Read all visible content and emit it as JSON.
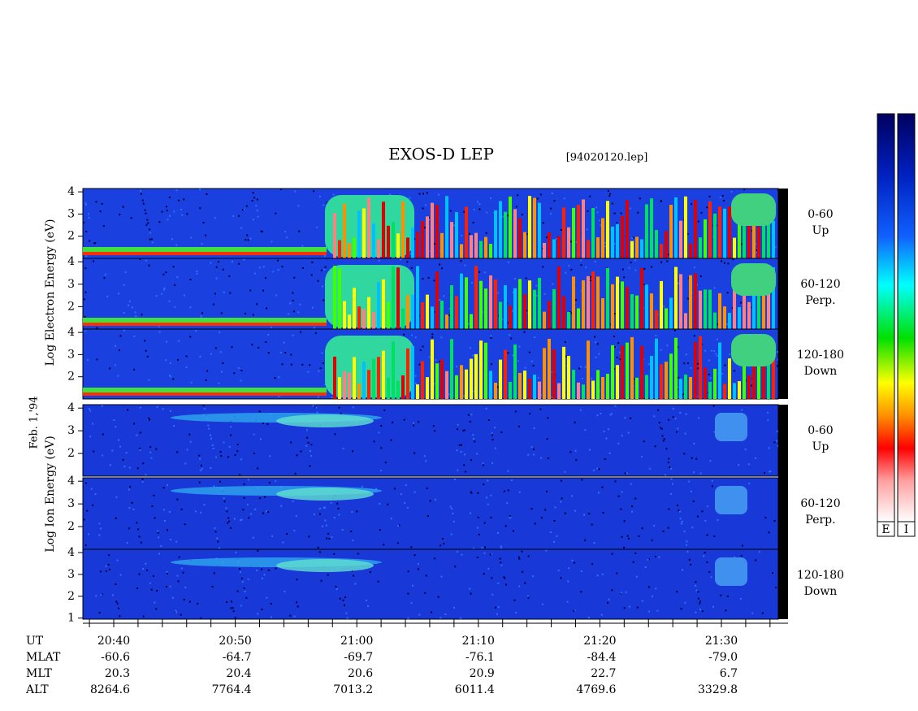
{
  "header": {
    "title": "EXOS-D LEP",
    "file": "[94020120.lep]",
    "date": "Feb. 1,'94"
  },
  "chart_data": [
    {
      "type": "heatmap",
      "ylabel": "Log Electron Energy (eV)",
      "panels": [
        {
          "label": "0-60",
          "sublabel": "Up",
          "ylim": [
            1,
            4.15
          ],
          "yticks": [
            2,
            3,
            4
          ]
        },
        {
          "label": "60-120",
          "sublabel": "Perp.",
          "ylim": [
            1,
            4.15
          ],
          "yticks": [
            2,
            3,
            4
          ]
        },
        {
          "label": "120-180",
          "sublabel": "Down",
          "ylim": [
            1,
            4.15
          ],
          "yticks": [
            2,
            3,
            4
          ]
        }
      ]
    },
    {
      "type": "heatmap",
      "ylabel": "Log Ion Energy (eV)",
      "panels": [
        {
          "label": "0-60",
          "sublabel": "Up",
          "ylim": [
            1,
            4.15
          ],
          "yticks": [
            2,
            3,
            4
          ]
        },
        {
          "label": "60-120",
          "sublabel": "Perp.",
          "ylim": [
            1,
            4.15
          ],
          "yticks": [
            2,
            3,
            4
          ]
        },
        {
          "label": "120-180",
          "sublabel": "Down",
          "ylim": [
            0.95,
            4.15
          ],
          "yticks": [
            1,
            2,
            3,
            4
          ]
        }
      ]
    }
  ],
  "colorbars": [
    "E",
    "I"
  ],
  "ephemeris": {
    "rows": [
      {
        "label": "UT",
        "values": [
          "20:40",
          "20:50",
          "21:00",
          "21:10",
          "21:20",
          "21:30"
        ]
      },
      {
        "label": "MLAT",
        "values": [
          "-60.6",
          "-64.7",
          "-69.7",
          "-76.1",
          "-84.4",
          "-79.0"
        ]
      },
      {
        "label": "MLT",
        "values": [
          "20.3",
          "20.4",
          "20.6",
          "20.9",
          "22.7",
          "6.7"
        ]
      },
      {
        "label": "ALT",
        "values": [
          "8264.6",
          "7764.4",
          "7013.2",
          "6011.4",
          "4769.6",
          "3329.8"
        ]
      }
    ]
  }
}
